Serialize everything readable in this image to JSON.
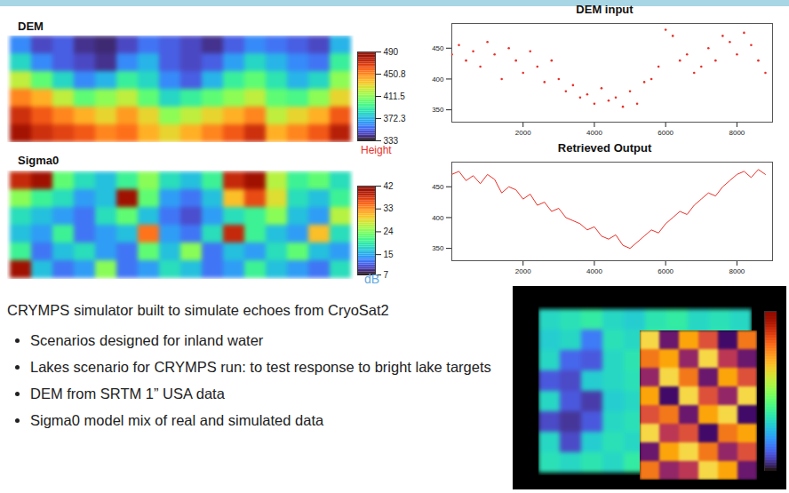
{
  "chart_data": [
    {
      "type": "heatmap",
      "title": "DEM",
      "tick_labels": false,
      "values": [
        [
          360,
          345,
          350,
          340,
          338,
          345,
          355,
          350,
          345,
          340,
          350,
          360,
          355,
          350,
          345,
          370
        ],
        [
          380,
          360,
          350,
          345,
          340,
          360,
          370,
          350,
          345,
          350,
          365,
          380,
          370,
          360,
          355,
          390
        ],
        [
          420,
          400,
          380,
          360,
          370,
          390,
          380,
          360,
          350,
          370,
          390,
          400,
          385,
          370,
          380,
          410
        ],
        [
          450,
          440,
          420,
          400,
          410,
          420,
          400,
          380,
          390,
          400,
          410,
          420,
          400,
          395,
          410,
          430
        ],
        [
          470,
          460,
          450,
          440,
          430,
          445,
          430,
          410,
          420,
          430,
          440,
          450,
          420,
          430,
          440,
          460
        ],
        [
          480,
          470,
          465,
          460,
          450,
          455,
          440,
          430,
          440,
          450,
          460,
          470,
          440,
          450,
          460,
          475
        ]
      ],
      "colorbar": {
        "lim": [
          333,
          490
        ],
        "ticks": [
          333,
          372.3,
          411.5,
          450.8,
          490
        ],
        "label": "Height"
      }
    },
    {
      "type": "heatmap",
      "title": "Sigma0",
      "tick_labels": false,
      "values": [
        [
          38,
          40,
          22,
          18,
          16,
          20,
          24,
          18,
          16,
          20,
          38,
          40,
          26,
          20,
          22,
          18
        ],
        [
          24,
          20,
          18,
          14,
          16,
          40,
          22,
          14,
          12,
          16,
          30,
          36,
          28,
          18,
          16,
          20
        ],
        [
          18,
          16,
          14,
          12,
          18,
          22,
          16,
          12,
          10,
          14,
          18,
          20,
          24,
          16,
          14,
          26
        ],
        [
          16,
          14,
          20,
          12,
          14,
          16,
          34,
          14,
          12,
          18,
          38,
          20,
          16,
          14,
          30,
          18
        ],
        [
          20,
          12,
          16,
          18,
          14,
          12,
          22,
          16,
          24,
          12,
          16,
          14,
          18,
          22,
          16,
          14
        ],
        [
          40,
          16,
          12,
          14,
          24,
          12,
          14,
          18,
          16,
          12,
          14,
          20,
          16,
          14,
          12,
          18
        ]
      ],
      "colorbar": {
        "lim": [
          7,
          42
        ],
        "ticks": [
          7,
          15,
          24,
          33,
          42
        ],
        "label": "dB"
      }
    },
    {
      "type": "scatter",
      "title": "DEM input",
      "color": "#e8312a",
      "marker": "dot",
      "x": [
        0,
        200,
        400,
        600,
        800,
        1000,
        1200,
        1400,
        1600,
        1800,
        2000,
        2200,
        2400,
        2600,
        2800,
        3000,
        3200,
        3400,
        3600,
        3800,
        4000,
        4200,
        4400,
        4600,
        4800,
        5000,
        5200,
        5400,
        5600,
        5800,
        6000,
        6200,
        6400,
        6600,
        6800,
        7000,
        7200,
        7400,
        7600,
        7800,
        8000,
        8200,
        8400,
        8600,
        8800
      ],
      "values": [
        440,
        455,
        430,
        445,
        420,
        460,
        440,
        400,
        450,
        430,
        410,
        445,
        420,
        395,
        430,
        400,
        380,
        390,
        370,
        375,
        360,
        385,
        365,
        370,
        355,
        380,
        360,
        395,
        400,
        420,
        480,
        470,
        430,
        440,
        410,
        420,
        450,
        430,
        470,
        460,
        440,
        475,
        455,
        430,
        410
      ],
      "xlim": [
        0,
        9000
      ],
      "xticks": [
        2000,
        4000,
        6000,
        8000
      ],
      "ylim": [
        330,
        490
      ],
      "yticks": [
        350,
        400,
        450
      ]
    },
    {
      "type": "line",
      "title": "Retrieved Output",
      "color": "#e8312a",
      "x": [
        0,
        200,
        400,
        600,
        800,
        1000,
        1200,
        1400,
        1600,
        1800,
        2000,
        2200,
        2400,
        2600,
        2800,
        3000,
        3200,
        3400,
        3600,
        3800,
        4000,
        4200,
        4400,
        4600,
        4800,
        5000,
        5200,
        5400,
        5600,
        5800,
        6000,
        6200,
        6400,
        6600,
        6800,
        7000,
        7200,
        7400,
        7600,
        7800,
        8000,
        8200,
        8400,
        8600,
        8800
      ],
      "values": [
        470,
        475,
        460,
        468,
        455,
        470,
        462,
        440,
        450,
        445,
        430,
        438,
        420,
        425,
        410,
        415,
        400,
        395,
        390,
        380,
        385,
        370,
        365,
        372,
        355,
        350,
        360,
        370,
        380,
        375,
        390,
        400,
        410,
        405,
        420,
        430,
        440,
        435,
        450,
        460,
        470,
        475,
        465,
        478,
        470
      ],
      "xlim": [
        0,
        9000
      ],
      "xticks": [
        2000,
        4000,
        6000,
        8000
      ],
      "ylim": [
        330,
        490
      ],
      "yticks": [
        350,
        400,
        450
      ]
    },
    {
      "type": "heatmap",
      "tick_labels": false,
      "values": [
        [
          0.3,
          0.32,
          0.35,
          0.3,
          0.28,
          0.33,
          0.35,
          0.3,
          0.32,
          0.3
        ],
        [
          0.28,
          0.3,
          0.15,
          0.32,
          0.3,
          0.35,
          0.33,
          0.3,
          0.34,
          0.31
        ],
        [
          0.3,
          0.12,
          0.1,
          0.3,
          0.33,
          0.3,
          0.35,
          0.32,
          0.3,
          0.33
        ],
        [
          0.1,
          0.08,
          0.28,
          0.3,
          0.32,
          0.34,
          0.3,
          0.33,
          0.31,
          0.3
        ],
        [
          0.3,
          0.1,
          0.06,
          0.28,
          0.3,
          0.35,
          0.32,
          0.3,
          0.33,
          0.32
        ],
        [
          0.08,
          0.05,
          0.1,
          0.3,
          0.32,
          0.3,
          0.34,
          0.31,
          0.3,
          0.35
        ],
        [
          0.3,
          0.08,
          0.28,
          0.32,
          0.3,
          0.33,
          0.3,
          0.35,
          0.32,
          0.3
        ],
        [
          0.32,
          0.3,
          0.33,
          0.3,
          0.35,
          0.31,
          0.34,
          0.3,
          0.33,
          0.31
        ]
      ],
      "colorbar": {
        "lim": [
          0,
          1
        ]
      },
      "inset": {
        "lim": [
          0,
          1
        ],
        "values": [
          [
            0.9,
            0.3,
            0.8,
            0.6,
            0.2,
            0.7
          ],
          [
            0.7,
            0.8,
            0.4,
            0.9,
            0.5,
            0.3
          ],
          [
            0.4,
            0.9,
            0.7,
            0.3,
            0.8,
            0.6
          ],
          [
            0.8,
            0.2,
            0.9,
            0.6,
            0.4,
            0.9
          ],
          [
            0.6,
            0.7,
            0.3,
            0.8,
            0.9,
            0.2
          ],
          [
            0.9,
            0.5,
            0.6,
            0.2,
            0.7,
            0.8
          ],
          [
            0.3,
            0.8,
            0.9,
            0.7,
            0.4,
            0.6
          ],
          [
            0.7,
            0.4,
            0.5,
            0.9,
            0.8,
            0.3
          ]
        ]
      }
    }
  ],
  "text": {
    "heading": "CRYMPS simulator built to simulate echoes from CryoSat2",
    "bullets": [
      "Scenarios designed for inland water",
      "Lakes scenario for CRYMPS run:  to test response to bright lake targets",
      "DEM from SRTM 1” USA data",
      "Sigma0 model mix of real and simulated data"
    ]
  }
}
